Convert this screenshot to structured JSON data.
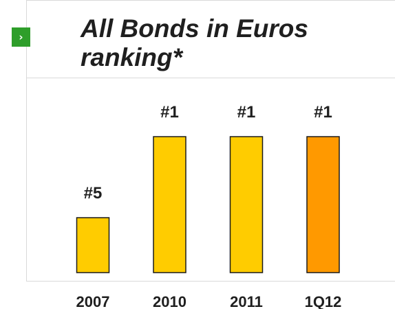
{
  "header": {
    "icon": "chevron-right-icon",
    "icon_glyph": "›",
    "icon_color": "#2e9e2a"
  },
  "chart_data": {
    "type": "bar",
    "title": "All Bonds in Euros ranking*",
    "categories": [
      "2007",
      "2010",
      "2011",
      "1Q12"
    ],
    "values": [
      5,
      1,
      1,
      1
    ],
    "data_labels": [
      "#5",
      "#1",
      "#1",
      "#1"
    ],
    "value_meaning": "ranking position (lower is better; bars are taller for better rank)",
    "bar_colors": [
      "#ffcc00",
      "#ffcc00",
      "#ffcc00",
      "#ff9900"
    ],
    "bar_outline": "#1a1a1a",
    "xlabel": "",
    "ylabel": "",
    "grid": false,
    "legend": "none"
  }
}
